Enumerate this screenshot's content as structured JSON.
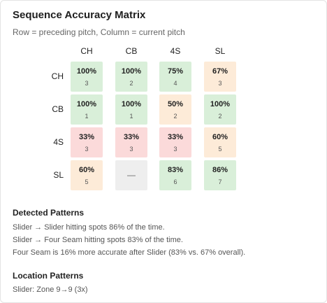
{
  "title": "Sequence Accuracy Matrix",
  "subtitle": "Row = preceding pitch, Column = current pitch",
  "colors": {
    "green": "#d9efd9",
    "orange": "#fdebd8",
    "red": "#fbdada",
    "gray": "#eeeeee"
  },
  "chart_data": {
    "type": "heatmap",
    "title": "Sequence Accuracy Matrix",
    "row_label": "Row = preceding pitch",
    "col_label": "Column = current pitch",
    "columns": [
      "CH",
      "CB",
      "4S",
      "SL"
    ],
    "rows": [
      "CH",
      "CB",
      "4S",
      "SL"
    ],
    "cells": [
      [
        {
          "pct": "100%",
          "count": "3",
          "color": "green"
        },
        {
          "pct": "100%",
          "count": "2",
          "color": "green"
        },
        {
          "pct": "75%",
          "count": "4",
          "color": "green"
        },
        {
          "pct": "67%",
          "count": "3",
          "color": "orange"
        }
      ],
      [
        {
          "pct": "100%",
          "count": "1",
          "color": "green"
        },
        {
          "pct": "100%",
          "count": "1",
          "color": "green"
        },
        {
          "pct": "50%",
          "count": "2",
          "color": "orange"
        },
        {
          "pct": "100%",
          "count": "2",
          "color": "green"
        }
      ],
      [
        {
          "pct": "33%",
          "count": "3",
          "color": "red"
        },
        {
          "pct": "33%",
          "count": "3",
          "color": "red"
        },
        {
          "pct": "33%",
          "count": "3",
          "color": "red"
        },
        {
          "pct": "60%",
          "count": "5",
          "color": "orange"
        }
      ],
      [
        {
          "pct": "60%",
          "count": "5",
          "color": "orange"
        },
        {
          "empty": "—",
          "color": "gray"
        },
        {
          "pct": "83%",
          "count": "6",
          "color": "green"
        },
        {
          "pct": "86%",
          "count": "7",
          "color": "green"
        }
      ]
    ]
  },
  "detected_patterns": {
    "title": "Detected Patterns",
    "lines": [
      "Slider → Slider hitting spots 86% of the time.",
      "Slider → Four Seam hitting spots 83% of the time.",
      "Four Seam is 16% more accurate after Slider (83% vs. 67% overall)."
    ]
  },
  "location_patterns": {
    "title": "Location Patterns",
    "lines": [
      "Slider: Zone 9→9 (3x)"
    ]
  }
}
